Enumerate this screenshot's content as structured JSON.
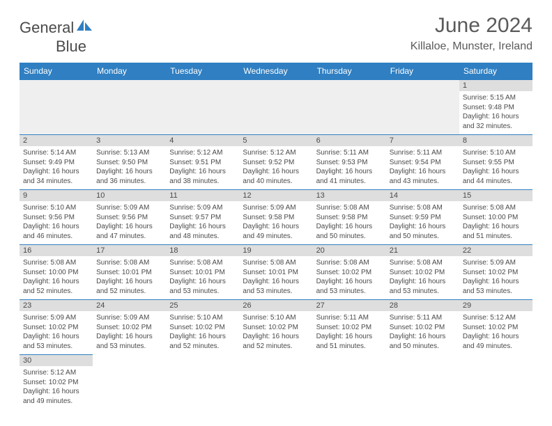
{
  "brand": {
    "name_part1": "General",
    "name_part2": "Blue",
    "text_color": "#4a4a4a",
    "icon_color": "#2f7fc2"
  },
  "header": {
    "title": "June 2024",
    "location": "Killaloe, Munster, Ireland"
  },
  "colors": {
    "header_bg": "#2f7fc2",
    "header_text": "#ffffff",
    "daynum_bg": "#dedede",
    "empty_bg": "#efefef",
    "text": "#4a4a4a",
    "border": "#2f7fc2"
  },
  "weekdays": [
    "Sunday",
    "Monday",
    "Tuesday",
    "Wednesday",
    "Thursday",
    "Friday",
    "Saturday"
  ],
  "weeks": [
    [
      null,
      null,
      null,
      null,
      null,
      null,
      {
        "num": "1",
        "sunrise": "Sunrise: 5:15 AM",
        "sunset": "Sunset: 9:48 PM",
        "day1": "Daylight: 16 hours",
        "day2": "and 32 minutes."
      }
    ],
    [
      {
        "num": "2",
        "sunrise": "Sunrise: 5:14 AM",
        "sunset": "Sunset: 9:49 PM",
        "day1": "Daylight: 16 hours",
        "day2": "and 34 minutes."
      },
      {
        "num": "3",
        "sunrise": "Sunrise: 5:13 AM",
        "sunset": "Sunset: 9:50 PM",
        "day1": "Daylight: 16 hours",
        "day2": "and 36 minutes."
      },
      {
        "num": "4",
        "sunrise": "Sunrise: 5:12 AM",
        "sunset": "Sunset: 9:51 PM",
        "day1": "Daylight: 16 hours",
        "day2": "and 38 minutes."
      },
      {
        "num": "5",
        "sunrise": "Sunrise: 5:12 AM",
        "sunset": "Sunset: 9:52 PM",
        "day1": "Daylight: 16 hours",
        "day2": "and 40 minutes."
      },
      {
        "num": "6",
        "sunrise": "Sunrise: 5:11 AM",
        "sunset": "Sunset: 9:53 PM",
        "day1": "Daylight: 16 hours",
        "day2": "and 41 minutes."
      },
      {
        "num": "7",
        "sunrise": "Sunrise: 5:11 AM",
        "sunset": "Sunset: 9:54 PM",
        "day1": "Daylight: 16 hours",
        "day2": "and 43 minutes."
      },
      {
        "num": "8",
        "sunrise": "Sunrise: 5:10 AM",
        "sunset": "Sunset: 9:55 PM",
        "day1": "Daylight: 16 hours",
        "day2": "and 44 minutes."
      }
    ],
    [
      {
        "num": "9",
        "sunrise": "Sunrise: 5:10 AM",
        "sunset": "Sunset: 9:56 PM",
        "day1": "Daylight: 16 hours",
        "day2": "and 46 minutes."
      },
      {
        "num": "10",
        "sunrise": "Sunrise: 5:09 AM",
        "sunset": "Sunset: 9:56 PM",
        "day1": "Daylight: 16 hours",
        "day2": "and 47 minutes."
      },
      {
        "num": "11",
        "sunrise": "Sunrise: 5:09 AM",
        "sunset": "Sunset: 9:57 PM",
        "day1": "Daylight: 16 hours",
        "day2": "and 48 minutes."
      },
      {
        "num": "12",
        "sunrise": "Sunrise: 5:09 AM",
        "sunset": "Sunset: 9:58 PM",
        "day1": "Daylight: 16 hours",
        "day2": "and 49 minutes."
      },
      {
        "num": "13",
        "sunrise": "Sunrise: 5:08 AM",
        "sunset": "Sunset: 9:58 PM",
        "day1": "Daylight: 16 hours",
        "day2": "and 50 minutes."
      },
      {
        "num": "14",
        "sunrise": "Sunrise: 5:08 AM",
        "sunset": "Sunset: 9:59 PM",
        "day1": "Daylight: 16 hours",
        "day2": "and 50 minutes."
      },
      {
        "num": "15",
        "sunrise": "Sunrise: 5:08 AM",
        "sunset": "Sunset: 10:00 PM",
        "day1": "Daylight: 16 hours",
        "day2": "and 51 minutes."
      }
    ],
    [
      {
        "num": "16",
        "sunrise": "Sunrise: 5:08 AM",
        "sunset": "Sunset: 10:00 PM",
        "day1": "Daylight: 16 hours",
        "day2": "and 52 minutes."
      },
      {
        "num": "17",
        "sunrise": "Sunrise: 5:08 AM",
        "sunset": "Sunset: 10:01 PM",
        "day1": "Daylight: 16 hours",
        "day2": "and 52 minutes."
      },
      {
        "num": "18",
        "sunrise": "Sunrise: 5:08 AM",
        "sunset": "Sunset: 10:01 PM",
        "day1": "Daylight: 16 hours",
        "day2": "and 53 minutes."
      },
      {
        "num": "19",
        "sunrise": "Sunrise: 5:08 AM",
        "sunset": "Sunset: 10:01 PM",
        "day1": "Daylight: 16 hours",
        "day2": "and 53 minutes."
      },
      {
        "num": "20",
        "sunrise": "Sunrise: 5:08 AM",
        "sunset": "Sunset: 10:02 PM",
        "day1": "Daylight: 16 hours",
        "day2": "and 53 minutes."
      },
      {
        "num": "21",
        "sunrise": "Sunrise: 5:08 AM",
        "sunset": "Sunset: 10:02 PM",
        "day1": "Daylight: 16 hours",
        "day2": "and 53 minutes."
      },
      {
        "num": "22",
        "sunrise": "Sunrise: 5:09 AM",
        "sunset": "Sunset: 10:02 PM",
        "day1": "Daylight: 16 hours",
        "day2": "and 53 minutes."
      }
    ],
    [
      {
        "num": "23",
        "sunrise": "Sunrise: 5:09 AM",
        "sunset": "Sunset: 10:02 PM",
        "day1": "Daylight: 16 hours",
        "day2": "and 53 minutes."
      },
      {
        "num": "24",
        "sunrise": "Sunrise: 5:09 AM",
        "sunset": "Sunset: 10:02 PM",
        "day1": "Daylight: 16 hours",
        "day2": "and 53 minutes."
      },
      {
        "num": "25",
        "sunrise": "Sunrise: 5:10 AM",
        "sunset": "Sunset: 10:02 PM",
        "day1": "Daylight: 16 hours",
        "day2": "and 52 minutes."
      },
      {
        "num": "26",
        "sunrise": "Sunrise: 5:10 AM",
        "sunset": "Sunset: 10:02 PM",
        "day1": "Daylight: 16 hours",
        "day2": "and 52 minutes."
      },
      {
        "num": "27",
        "sunrise": "Sunrise: 5:11 AM",
        "sunset": "Sunset: 10:02 PM",
        "day1": "Daylight: 16 hours",
        "day2": "and 51 minutes."
      },
      {
        "num": "28",
        "sunrise": "Sunrise: 5:11 AM",
        "sunset": "Sunset: 10:02 PM",
        "day1": "Daylight: 16 hours",
        "day2": "and 50 minutes."
      },
      {
        "num": "29",
        "sunrise": "Sunrise: 5:12 AM",
        "sunset": "Sunset: 10:02 PM",
        "day1": "Daylight: 16 hours",
        "day2": "and 49 minutes."
      }
    ],
    [
      {
        "num": "30",
        "sunrise": "Sunrise: 5:12 AM",
        "sunset": "Sunset: 10:02 PM",
        "day1": "Daylight: 16 hours",
        "day2": "and 49 minutes."
      },
      null,
      null,
      null,
      null,
      null,
      null
    ]
  ]
}
